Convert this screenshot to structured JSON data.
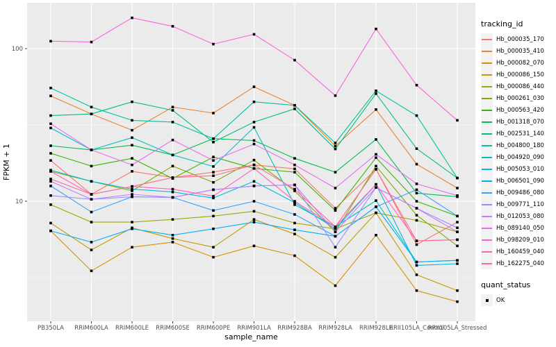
{
  "chart_data": {
    "type": "line",
    "title": "",
    "x_axis": {
      "label": "sample_name",
      "categories": [
        "PB350LA",
        "RRIM600LA",
        "RRIM600LE",
        "RRIM600SE",
        "RRIM600PE",
        "RRIM901LA",
        "RRIM928BA",
        "RRIM928LA",
        "RRIM928LE",
        "RRII105LA_Control",
        "RRII105LA_Stressed"
      ]
    },
    "y_axis": {
      "label": "FPKM + 1",
      "scale": "log10",
      "ticks": [
        {
          "value": 100,
          "label": "100"
        },
        {
          "value": 10,
          "label": "10"
        }
      ],
      "minor_gridlines": [
        31.62,
        3.162
      ],
      "visible_range": [
        1.65,
        190
      ]
    },
    "legend": {
      "tracking_title": "tracking_id",
      "quant_title": "quant_status",
      "quant_items": [
        {
          "label": "OK",
          "marker": "black-square"
        }
      ],
      "position": "right"
    },
    "grid": "on",
    "point_marker": "black-square",
    "series": [
      {
        "name": "Hb_000035_170",
        "color": "#F8766D",
        "values": [
          18.5,
          11.1,
          15.7,
          14.3,
          15.5,
          17.3,
          16.3,
          9.0,
          16.2,
          5.2,
          7.3
        ]
      },
      {
        "name": "Hb_000035_410",
        "color": "#EA8331",
        "values": [
          49.0,
          37.3,
          29.2,
          41.4,
          37.8,
          56.2,
          42.5,
          23.0,
          39.9,
          17.5,
          12.2
        ]
      },
      {
        "name": "Hb_000082_070",
        "color": "#D89000",
        "values": [
          6.4,
          3.5,
          5.0,
          5.4,
          4.3,
          5.1,
          4.4,
          2.8,
          6.0,
          2.6,
          2.2
        ]
      },
      {
        "name": "Hb_000086_150",
        "color": "#C09B00",
        "values": [
          7.2,
          4.8,
          6.7,
          5.7,
          5.0,
          7.6,
          6.1,
          4.3,
          8.4,
          3.3,
          2.6
        ]
      },
      {
        "name": "Hb_000086_440",
        "color": "#A3A500",
        "values": [
          9.5,
          7.3,
          7.3,
          7.6,
          8.0,
          8.6,
          7.2,
          6.6,
          8.4,
          7.5,
          6.3
        ]
      },
      {
        "name": "Hb_000261_030",
        "color": "#7CAE00",
        "values": [
          15.7,
          13.5,
          11.7,
          17.0,
          13.3,
          18.6,
          11.7,
          6.3,
          17.0,
          8.1,
          5.1
        ]
      },
      {
        "name": "Hb_000563_420",
        "color": "#39B600",
        "values": [
          20.6,
          17.0,
          19.1,
          14.1,
          19.5,
          16.4,
          15.5,
          8.7,
          19.3,
          10.0,
          8.0
        ]
      },
      {
        "name": "Hb_001318_070",
        "color": "#00BB4E",
        "values": [
          23.1,
          21.7,
          23.3,
          20.1,
          25.7,
          25.0,
          19.1,
          15.5,
          25.4,
          11.3,
          10.7
        ]
      },
      {
        "name": "Hb_002531_140",
        "color": "#00BF7D",
        "values": [
          36.4,
          37.3,
          44.8,
          39.4,
          24.4,
          33.0,
          40.3,
          22.0,
          50.7,
          22.1,
          14.2
        ]
      },
      {
        "name": "Hb_004800_180",
        "color": "#00C1A3",
        "values": [
          55.2,
          41.4,
          33.9,
          33.0,
          25.7,
          44.8,
          42.5,
          24.1,
          52.9,
          36.4,
          14.2
        ]
      },
      {
        "name": "Hb_004920_090",
        "color": "#00BFC4",
        "values": [
          30.2,
          21.7,
          26.1,
          20.1,
          16.9,
          30.5,
          9.5,
          6.8,
          10.1,
          4.0,
          4.1
        ]
      },
      {
        "name": "Hb_005053_010",
        "color": "#00BAE0",
        "values": [
          16.0,
          13.5,
          12.0,
          11.5,
          10.5,
          13.5,
          9.8,
          6.6,
          12.9,
          3.8,
          3.9
        ]
      },
      {
        "name": "Hb_006501_090",
        "color": "#00B0F6",
        "values": [
          6.4,
          5.4,
          6.6,
          6.0,
          6.6,
          7.3,
          6.5,
          5.9,
          9.2,
          4.0,
          4.1
        ]
      },
      {
        "name": "Hb_009486_080",
        "color": "#35A2FF",
        "values": [
          12.6,
          8.5,
          10.7,
          10.6,
          8.7,
          10.0,
          8.2,
          5.9,
          9.2,
          11.9,
          8.0
        ]
      },
      {
        "name": "Hb_009771_110",
        "color": "#9590FF",
        "values": [
          10.9,
          10.3,
          10.7,
          10.6,
          11.9,
          12.6,
          12.8,
          5.0,
          12.3,
          9.0,
          6.7
        ]
      },
      {
        "name": "Hb_012053_080",
        "color": "#C77CFF",
        "values": [
          13.5,
          10.3,
          11.1,
          10.6,
          11.9,
          12.6,
          12.8,
          6.3,
          12.3,
          9.0,
          6.3
        ]
      },
      {
        "name": "Hb_089140_050",
        "color": "#E76BF3",
        "values": [
          32.2,
          21.7,
          17.3,
          25.2,
          18.5,
          23.7,
          17.3,
          12.2,
          20.3,
          13.0,
          10.9
        ]
      },
      {
        "name": "Hb_098209_010",
        "color": "#FA62DB",
        "values": [
          111.8,
          110.4,
          159.0,
          140.0,
          107.0,
          124.0,
          84.0,
          49.2,
          134.5,
          57.6,
          33.9
        ]
      },
      {
        "name": "Hb_160459_040",
        "color": "#FF62BC",
        "values": [
          15.7,
          11.1,
          12.5,
          12.0,
          10.8,
          16.4,
          10.0,
          6.8,
          12.9,
          5.5,
          5.6
        ]
      },
      {
        "name": "Hb_162275_040",
        "color": "#FF6A98",
        "values": [
          14.0,
          11.1,
          12.5,
          14.3,
          14.7,
          17.3,
          12.0,
          6.8,
          16.2,
          5.5,
          5.6
        ]
      }
    ],
    "style": {
      "panel_bg": "#EBEBEB",
      "grid_color": "#FFFFFF",
      "tick_text_color": "#4D4D4D",
      "point_color": "#000000",
      "legend_key_bg": "#F2F2F2"
    }
  }
}
